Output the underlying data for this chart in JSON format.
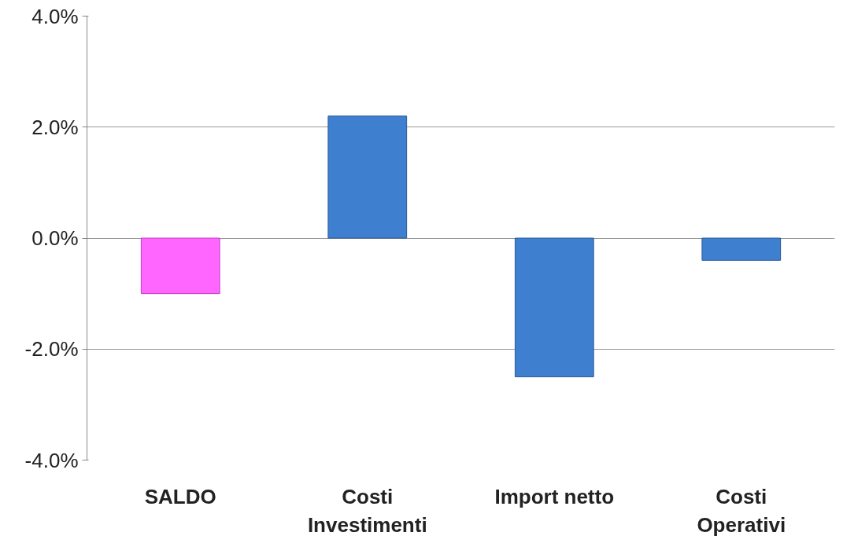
{
  "chart_data": {
    "type": "bar",
    "categories": [
      "SALDO",
      "Costi Investimenti",
      "Import netto",
      "Costi Operativi"
    ],
    "values": [
      -1.0,
      2.2,
      -2.5,
      -0.4
    ],
    "colors": [
      "#ff66ff",
      "#3f7fcf",
      "#3f7fcf",
      "#3f7fcf"
    ],
    "ylim": [
      -4,
      4
    ],
    "yticks": [
      {
        "value": -4,
        "label": "-4.0%"
      },
      {
        "value": -2,
        "label": "-2.0%"
      },
      {
        "value": 0,
        "label": "0.0%"
      },
      {
        "value": 2,
        "label": "2.0%"
      },
      {
        "value": 4,
        "label": "4.0%"
      }
    ],
    "grid": "y"
  }
}
